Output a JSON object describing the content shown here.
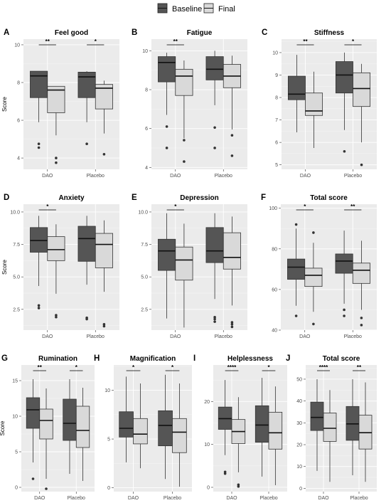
{
  "legend": [
    {
      "label": "Baseline",
      "color": "#555555"
    },
    {
      "label": "Final",
      "color": "#d9d9d9"
    }
  ],
  "ylabel": "Score",
  "chart_data": [
    {
      "type": "boxplot",
      "letter": "A",
      "title": "Feel good",
      "categories": [
        "DAO",
        "Placebo"
      ],
      "ylim": [
        3.4,
        10.3
      ],
      "yticks": [
        4,
        6,
        8,
        10
      ],
      "tick_labels": [
        "4",
        "6",
        "8",
        "10"
      ],
      "series": [
        {
          "name": "Baseline",
          "boxes": [
            {
              "min": 5.9,
              "q1": 7.2,
              "median": 8.35,
              "q3": 8.6,
              "max": 8.6,
              "outliers": [
                4.75,
                4.55
              ]
            },
            {
              "min": 5.9,
              "q1": 7.2,
              "median": 8.3,
              "q3": 8.55,
              "max": 8.6,
              "outliers": [
                4.75
              ]
            }
          ]
        },
        {
          "name": "Final",
          "boxes": [
            {
              "min": 5.2,
              "q1": 6.4,
              "median": 7.6,
              "q3": 7.8,
              "max": 7.8,
              "outliers": [
                4.0,
                3.75
              ]
            },
            {
              "min": 5.3,
              "q1": 6.6,
              "median": 7.7,
              "q3": 7.9,
              "max": 8.1,
              "outliers": [
                4.2
              ]
            }
          ]
        }
      ],
      "significance": [
        "**",
        "*"
      ]
    },
    {
      "type": "boxplot",
      "letter": "B",
      "title": "Fatigue",
      "categories": [
        "DAO",
        "Placebo"
      ],
      "ylim": [
        3.9,
        10.6
      ],
      "yticks": [
        4,
        6,
        8,
        10
      ],
      "tick_labels": [
        "4",
        "6",
        "8",
        "10"
      ],
      "series": [
        {
          "name": "Baseline",
          "boxes": [
            {
              "min": 6.7,
              "q1": 8.4,
              "median": 9.4,
              "q3": 9.7,
              "max": 9.9,
              "outliers": [
                6.1,
                5.0
              ]
            },
            {
              "min": 7.2,
              "q1": 8.5,
              "median": 9.05,
              "q3": 9.7,
              "max": 10.0,
              "outliers": [
                6.05,
                5.0
              ]
            }
          ]
        },
        {
          "name": "Final",
          "boxes": [
            {
              "min": 5.5,
              "q1": 7.7,
              "median": 8.7,
              "q3": 9.05,
              "max": 9.5,
              "outliers": [
                5.4,
                4.3
              ]
            },
            {
              "min": 5.95,
              "q1": 8.1,
              "median": 8.7,
              "q3": 9.3,
              "max": 9.75,
              "outliers": [
                5.65,
                4.6
              ]
            }
          ]
        }
      ],
      "significance": [
        "**",
        ""
      ]
    },
    {
      "type": "boxplot",
      "letter": "C",
      "title": "Stiffness",
      "categories": [
        "DAO",
        "Placebo"
      ],
      "ylim": [
        4.8,
        10.6
      ],
      "yticks": [
        5,
        6,
        7,
        8,
        9,
        10
      ],
      "tick_labels": [
        "5",
        "6",
        "7",
        "8",
        "9",
        "10"
      ],
      "series": [
        {
          "name": "Baseline",
          "boxes": [
            {
              "min": 6.45,
              "q1": 7.9,
              "median": 8.15,
              "q3": 8.95,
              "max": 9.9,
              "outliers": []
            },
            {
              "min": 6.55,
              "q1": 8.2,
              "median": 9.0,
              "q3": 9.6,
              "max": 10.0,
              "outliers": [
                5.6
              ]
            }
          ]
        },
        {
          "name": "Final",
          "boxes": [
            {
              "min": 5.75,
              "q1": 7.2,
              "median": 7.4,
              "q3": 8.2,
              "max": 9.15,
              "outliers": []
            },
            {
              "min": 6.0,
              "q1": 7.6,
              "median": 8.4,
              "q3": 9.1,
              "max": 9.5,
              "outliers": [
                5.0
              ]
            }
          ]
        }
      ],
      "significance": [
        "**",
        "*"
      ]
    },
    {
      "type": "boxplot",
      "letter": "D",
      "title": "Anxiety",
      "categories": [
        "DAO",
        "Placebo"
      ],
      "ylim": [
        0.9,
        10.6
      ],
      "yticks": [
        2.5,
        5.0,
        7.5,
        10.0
      ],
      "tick_labels": [
        "2.5",
        "5.0",
        "7.5",
        "10.0"
      ],
      "series": [
        {
          "name": "Baseline",
          "boxes": [
            {
              "min": 4.3,
              "q1": 6.9,
              "median": 7.8,
              "q3": 8.8,
              "max": 9.7,
              "outliers": [
                2.8,
                2.6
              ]
            },
            {
              "min": 4.4,
              "q1": 6.2,
              "median": 7.95,
              "q3": 8.9,
              "max": 9.7,
              "outliers": [
                1.85,
                1.75
              ]
            }
          ]
        },
        {
          "name": "Final",
          "boxes": [
            {
              "min": 3.7,
              "q1": 6.25,
              "median": 7.1,
              "q3": 8.1,
              "max": 9.05,
              "outliers": [
                2.05,
                1.9
              ]
            },
            {
              "min": 3.85,
              "q1": 5.7,
              "median": 7.5,
              "q3": 8.35,
              "max": 9.35,
              "outliers": [
                1.35,
                1.2
              ]
            }
          ]
        }
      ],
      "significance": [
        "*",
        ""
      ]
    },
    {
      "type": "boxplot",
      "letter": "E",
      "title": "Depression",
      "categories": [
        "DAO",
        "Placebo"
      ],
      "ylim": [
        0.9,
        10.6
      ],
      "yticks": [
        2.5,
        5.0,
        7.5,
        10.0
      ],
      "tick_labels": [
        "2.5",
        "5.0",
        "7.5",
        "10.0"
      ],
      "series": [
        {
          "name": "Baseline",
          "boxes": [
            {
              "min": 1.8,
              "q1": 5.5,
              "median": 7.0,
              "q3": 7.9,
              "max": 9.9,
              "outliers": []
            },
            {
              "min": 3.3,
              "q1": 6.1,
              "median": 7.0,
              "q3": 8.8,
              "max": 9.9,
              "outliers": [
                1.9,
                1.75,
                1.55
              ]
            }
          ]
        },
        {
          "name": "Final",
          "boxes": [
            {
              "min": 1.1,
              "q1": 4.75,
              "median": 6.3,
              "q3": 7.3,
              "max": 9.1,
              "outliers": []
            },
            {
              "min": 2.8,
              "q1": 5.6,
              "median": 6.5,
              "q3": 8.4,
              "max": 9.65,
              "outliers": [
                1.5,
                1.35,
                1.15
              ]
            }
          ]
        }
      ],
      "significance": [
        "*",
        ""
      ]
    },
    {
      "type": "boxplot",
      "letter": "F",
      "title": "Total score",
      "categories": [
        "DAO",
        "Placebo"
      ],
      "ylim": [
        40,
        102
      ],
      "yticks": [
        40,
        60,
        80,
        100
      ],
      "tick_labels": [
        "40",
        "60",
        "80",
        "100"
      ],
      "series": [
        {
          "name": "Baseline",
          "boxes": [
            {
              "min": 52,
              "q1": 65,
              "median": 71,
              "q3": 75,
              "max": 90,
              "outliers": [
                92,
                47
              ]
            },
            {
              "min": 53,
              "q1": 68,
              "median": 74,
              "q3": 77.5,
              "max": 89,
              "outliers": [
                50,
                47
              ]
            }
          ]
        },
        {
          "name": "Final",
          "boxes": [
            {
              "min": 49,
              "q1": 61.5,
              "median": 67,
              "q3": 70.5,
              "max": 83,
              "outliers": [
                88,
                43
              ]
            },
            {
              "min": 50,
              "q1": 63,
              "median": 69.5,
              "q3": 73,
              "max": 84,
              "outliers": [
                46,
                42.5
              ]
            }
          ]
        }
      ],
      "significance": [
        "*",
        "**"
      ]
    },
    {
      "type": "boxplot",
      "letter": "G",
      "title": "Rumination",
      "categories": [
        "DAO",
        "Placebo"
      ],
      "ylim": [
        -0.6,
        17.2
      ],
      "yticks": [
        0,
        5,
        10,
        15
      ],
      "tick_labels": [
        "0",
        "5",
        "10",
        "15"
      ],
      "series": [
        {
          "name": "Baseline",
          "boxes": [
            {
              "min": 3.5,
              "q1": 8.3,
              "median": 10.9,
              "q3": 12.6,
              "max": 15.2,
              "outliers": [
                1.2
              ]
            },
            {
              "min": 1.9,
              "q1": 6.6,
              "median": 9.0,
              "q3": 12.4,
              "max": 15.2,
              "outliers": []
            }
          ]
        },
        {
          "name": "Final",
          "boxes": [
            {
              "min": 1.2,
              "q1": 6.8,
              "median": 9.4,
              "q3": 11.0,
              "max": 13.9,
              "outliers": [
                -0.2
              ]
            },
            {
              "min": 0.9,
              "q1": 5.6,
              "median": 8.0,
              "q3": 11.4,
              "max": 14.0,
              "outliers": []
            }
          ]
        }
      ],
      "significance": [
        "**",
        "*"
      ]
    },
    {
      "type": "boxplot",
      "letter": "H",
      "title": "Magnification",
      "categories": [
        "DAO",
        "Placebo"
      ],
      "ylim": [
        -0.4,
        12.6
      ],
      "yticks": [
        0,
        5,
        10
      ],
      "tick_labels": [
        "0",
        "5",
        "10"
      ],
      "series": [
        {
          "name": "Baseline",
          "boxes": [
            {
              "min": 2.6,
              "q1": 5.2,
              "median": 6.1,
              "q3": 7.8,
              "max": 11.4,
              "outliers": []
            },
            {
              "min": 0.9,
              "q1": 4.3,
              "median": 6.4,
              "q3": 7.9,
              "max": 11.6,
              "outliers": []
            }
          ]
        },
        {
          "name": "Final",
          "boxes": [
            {
              "min": 2.0,
              "q1": 4.5,
              "median": 5.5,
              "q3": 7.1,
              "max": 10.7,
              "outliers": []
            },
            {
              "min": 0.1,
              "q1": 3.6,
              "median": 5.7,
              "q3": 7.1,
              "max": 10.7,
              "outliers": []
            }
          ]
        }
      ],
      "significance": [
        "*",
        "*"
      ]
    },
    {
      "type": "boxplot",
      "letter": "I",
      "title": "Helplessness",
      "categories": [
        "DAO",
        "Placebo"
      ],
      "ylim": [
        -1.0,
        28.5
      ],
      "yticks": [
        0,
        10,
        20
      ],
      "tick_labels": [
        "0",
        "10",
        "20"
      ],
      "series": [
        {
          "name": "Baseline",
          "boxes": [
            {
              "min": 7.5,
              "q1": 13.5,
              "median": 16.0,
              "q3": 18.7,
              "max": 25.0,
              "outliers": [
                3.6,
                3.2
              ]
            },
            {
              "min": 2.5,
              "q1": 10.5,
              "median": 14.5,
              "q3": 19.0,
              "max": 25.5,
              "outliers": []
            }
          ]
        },
        {
          "name": "Final",
          "boxes": [
            {
              "min": 3.5,
              "q1": 10.2,
              "median": 13.0,
              "q3": 15.8,
              "max": 21.0,
              "outliers": [
                0.6,
                0.2
              ]
            },
            {
              "min": 0.5,
              "q1": 8.9,
              "median": 12.7,
              "q3": 17.5,
              "max": 23.5,
              "outliers": []
            }
          ]
        }
      ],
      "significance": [
        "****",
        "*"
      ]
    },
    {
      "type": "boxplot",
      "letter": "J",
      "title": "Total score",
      "categories": [
        "DAO",
        "Placebo"
      ],
      "ylim": [
        -1.5,
        56.5
      ],
      "yticks": [
        0,
        10,
        20,
        30,
        40,
        50
      ],
      "tick_labels": [
        "0",
        "10",
        "20",
        "30",
        "40",
        "50"
      ],
      "series": [
        {
          "name": "Baseline",
          "boxes": [
            {
              "min": 8,
              "q1": 26.5,
              "median": 32.5,
              "q3": 39.5,
              "max": 50,
              "outliers": []
            },
            {
              "min": 6,
              "q1": 22,
              "median": 29.5,
              "q3": 37.5,
              "max": 50,
              "outliers": []
            }
          ]
        },
        {
          "name": "Final",
          "boxes": [
            {
              "min": 3,
              "q1": 21.5,
              "median": 27.5,
              "q3": 34.5,
              "max": 45,
              "outliers": []
            },
            {
              "min": 3,
              "q1": 18,
              "median": 25.5,
              "q3": 33.5,
              "max": 48.5,
              "outliers": []
            }
          ]
        }
      ],
      "significance": [
        "****",
        "**"
      ]
    }
  ]
}
